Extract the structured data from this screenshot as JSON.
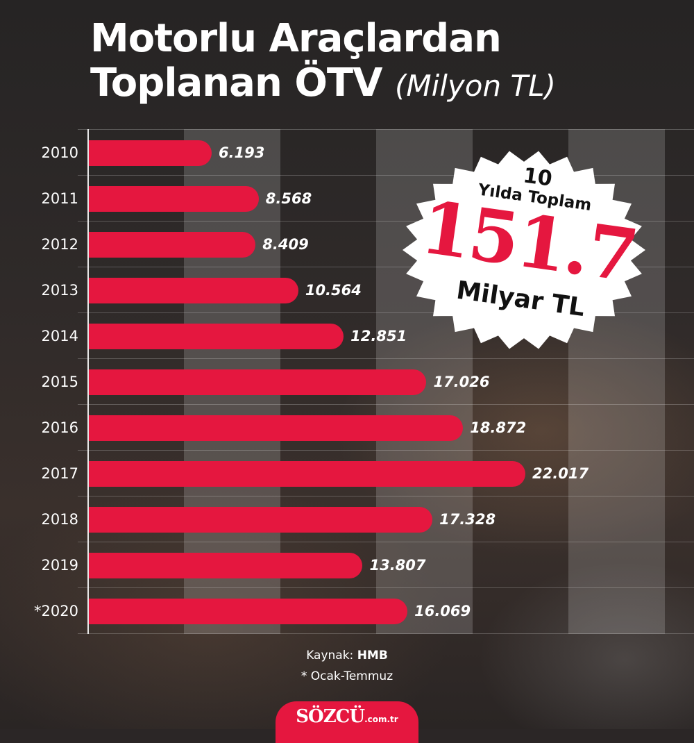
{
  "title": {
    "line1": "Motorlu Araçlardan",
    "line2": "Toplanan ÖTV",
    "unit": "(Milyon TL)"
  },
  "chart_data": {
    "type": "bar",
    "orientation": "horizontal",
    "title": "Motorlu Araçlardan Toplanan ÖTV",
    "unit": "(Milyon TL)",
    "categories": [
      "2010",
      "2011",
      "2012",
      "2013",
      "2014",
      "2015",
      "2016",
      "2017",
      "2018",
      "2019",
      "*2020"
    ],
    "values": [
      6193,
      8568,
      8409,
      10564,
      12851,
      17026,
      18872,
      22017,
      17328,
      13807,
      16069
    ],
    "value_labels": [
      "6.193",
      "8.568",
      "8.409",
      "10.564",
      "12.851",
      "17.026",
      "18.872",
      "22.017",
      "17.328",
      "13.807",
      "16.069"
    ],
    "xlim": [
      0,
      28000
    ],
    "bar_color": "#e5173f",
    "grid": "alternating vertical bands"
  },
  "badge": {
    "line1": "10",
    "line2": "Yılda Toplam",
    "big": "151.7",
    "line3": "Milyar TL"
  },
  "footer": {
    "source_label": "Kaynak:",
    "source_value": "HMB",
    "note": "* Ocak-Temmuz"
  },
  "logo": {
    "brand": "SÖZCÜ",
    "domain": ".com.tr"
  },
  "colors": {
    "accent": "#e5173f",
    "text": "#ffffff",
    "badge_bg": "#ffffff"
  }
}
